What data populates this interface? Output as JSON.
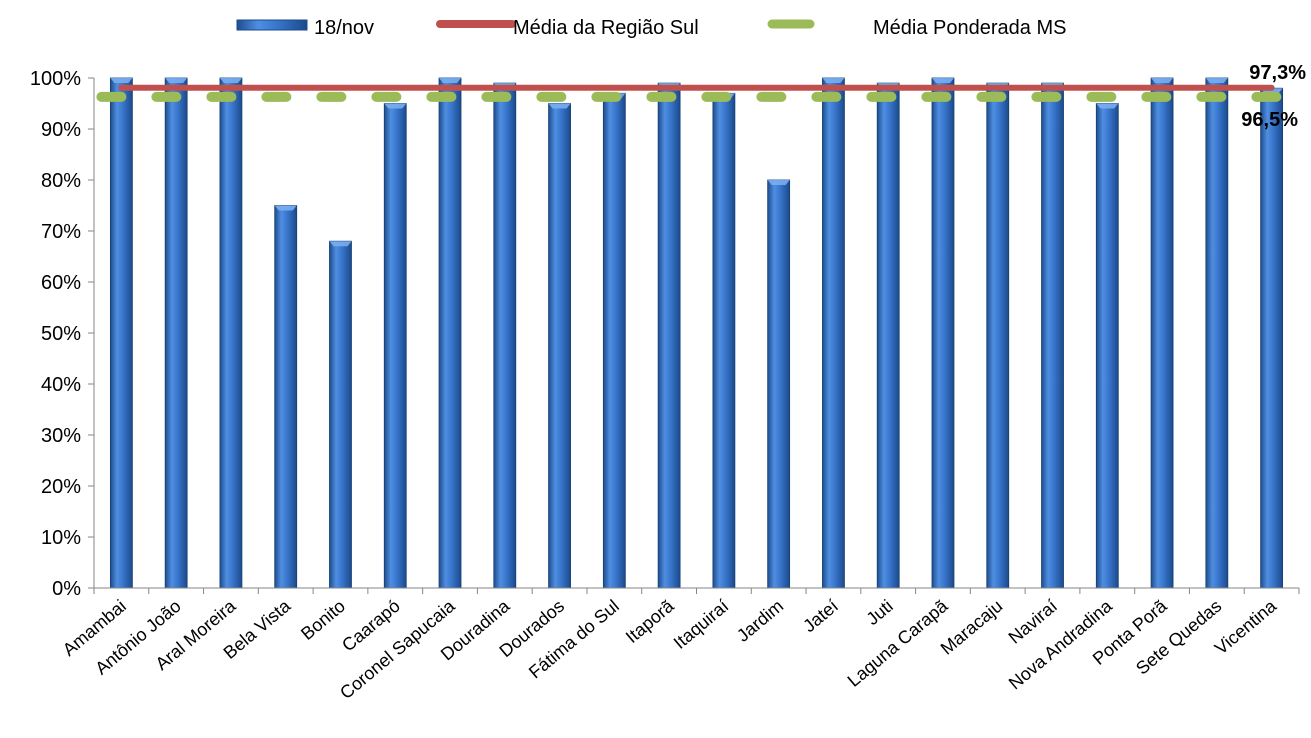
{
  "chart_data": {
    "type": "bar",
    "title": "",
    "xlabel": "",
    "ylabel": "",
    "ylim": [
      0,
      100
    ],
    "yticks": [
      "0%",
      "10%",
      "20%",
      "30%",
      "40%",
      "50%",
      "60%",
      "70%",
      "80%",
      "90%",
      "100%"
    ],
    "grid": false,
    "legend_position": "top",
    "categories": [
      "Amambai",
      "Antônio João",
      "Aral Moreira",
      "Bela Vista",
      "Bonito",
      "Caarapó",
      "Coronel Sapucaia",
      "Douradina",
      "Dourados",
      "Fátima do Sul",
      "Itaporã",
      "Itaquiraí",
      "Jardim",
      "Jateí",
      "Juti",
      "Laguna Carapã",
      "Maracaju",
      "Naviraí",
      "Nova Andradina",
      "Ponta Porã",
      "Sete Quedas",
      "Vicentina"
    ],
    "series": [
      {
        "name": "18/nov",
        "kind": "bar",
        "color": "#2e6dc0",
        "values": [
          100,
          100,
          100,
          75,
          68,
          95,
          100,
          99,
          95,
          97,
          99,
          97,
          80,
          100,
          99,
          100,
          99,
          99,
          95,
          100,
          100,
          98
        ]
      },
      {
        "name": "Média da Região Sul",
        "kind": "line",
        "color": "#c0504d",
        "value": 97.3,
        "label": "97,3%"
      },
      {
        "name": "Média Ponderada MS",
        "kind": "dashed-line",
        "color": "#9bbb59",
        "value": 96.5,
        "label": "96,5%"
      }
    ]
  }
}
